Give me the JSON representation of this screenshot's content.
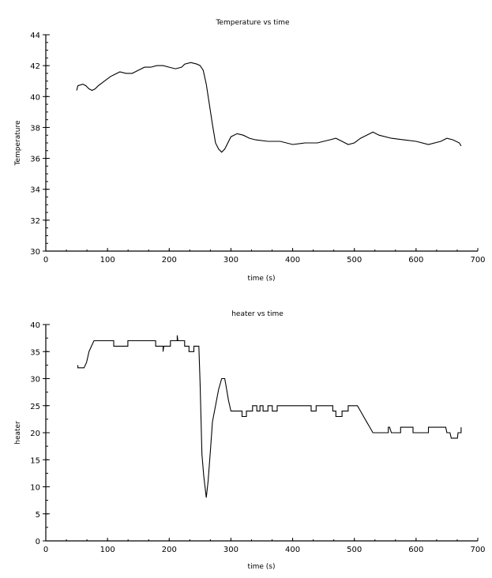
{
  "chart_data": [
    {
      "type": "line",
      "title": "Temperature vs time",
      "xlabel": "time (s)",
      "ylabel": "Temperature",
      "xlim": [
        0,
        700
      ],
      "ylim": [
        30,
        44
      ],
      "xticks": [
        0,
        100,
        200,
        300,
        400,
        500,
        600,
        700
      ],
      "yticks": [
        30,
        32,
        34,
        36,
        38,
        40,
        42,
        44
      ],
      "x_minor_step": 33.333,
      "y_minor_step": 0.5,
      "grid": false,
      "color": "#000000",
      "series": [
        {
          "name": "Temperature",
          "x": [
            50,
            52,
            60,
            65,
            70,
            75,
            80,
            85,
            95,
            105,
            110,
            120,
            130,
            140,
            150,
            160,
            170,
            180,
            190,
            200,
            210,
            220,
            225,
            235,
            245,
            250,
            255,
            260,
            265,
            270,
            275,
            280,
            285,
            290,
            295,
            300,
            310,
            320,
            330,
            340,
            360,
            380,
            400,
            420,
            440,
            460,
            470,
            480,
            490,
            500,
            510,
            520,
            530,
            540,
            560,
            580,
            600,
            620,
            640,
            650,
            660,
            670,
            673
          ],
          "y": [
            40.4,
            40.7,
            40.8,
            40.7,
            40.5,
            40.4,
            40.5,
            40.7,
            41.0,
            41.3,
            41.4,
            41.6,
            41.5,
            41.5,
            41.7,
            41.9,
            41.9,
            42.0,
            42.0,
            41.9,
            41.8,
            41.9,
            42.1,
            42.2,
            42.1,
            42.0,
            41.7,
            40.8,
            39.5,
            38.2,
            37.0,
            36.6,
            36.4,
            36.6,
            37.0,
            37.4,
            37.6,
            37.5,
            37.3,
            37.2,
            37.1,
            37.1,
            36.9,
            37.0,
            37.0,
            37.2,
            37.3,
            37.1,
            36.9,
            37.0,
            37.3,
            37.5,
            37.7,
            37.5,
            37.3,
            37.2,
            37.1,
            36.9,
            37.1,
            37.3,
            37.2,
            37.0,
            36.8
          ]
        }
      ]
    },
    {
      "type": "line",
      "title": "heater vs time",
      "xlabel": "time (s)",
      "ylabel": "heater",
      "xlim": [
        0,
        700
      ],
      "ylim": [
        0,
        40
      ],
      "xticks": [
        0,
        100,
        200,
        300,
        400,
        500,
        600,
        700
      ],
      "yticks": [
        0,
        5,
        10,
        15,
        20,
        25,
        30,
        35,
        40
      ],
      "x_minor_step": 33.333,
      "y_minor_step": 2.5,
      "grid": false,
      "color": "#000000",
      "series": [
        {
          "name": "heater",
          "x": [
            52,
            52,
            62,
            66,
            70,
            74,
            78,
            110,
            110,
            133,
            133,
            178,
            178,
            190,
            190,
            191,
            202,
            202,
            213,
            213,
            214,
            225,
            225,
            232,
            232,
            237,
            240,
            240,
            248,
            250,
            253,
            256,
            260,
            263,
            267,
            270,
            275,
            280,
            285,
            290,
            293,
            296,
            300,
            310,
            318,
            318,
            325,
            325,
            335,
            335,
            342,
            342,
            347,
            347,
            352,
            352,
            360,
            360,
            367,
            367,
            375,
            375,
            390,
            390,
            430,
            430,
            438,
            438,
            465,
            465,
            470,
            470,
            480,
            480,
            490,
            490,
            505,
            510,
            515,
            520,
            525,
            530,
            555,
            555,
            557,
            560,
            575,
            575,
            595,
            595,
            620,
            620,
            648,
            650,
            655,
            657,
            667,
            668,
            673,
            673
          ],
          "y": [
            32.5,
            32,
            32,
            33,
            35,
            36,
            37,
            37,
            36,
            36,
            37,
            37,
            36,
            36,
            35,
            36,
            36,
            37,
            37,
            38,
            37,
            37,
            36,
            36,
            35,
            35,
            35,
            36,
            36,
            29,
            16,
            12,
            8,
            11,
            17,
            22,
            25,
            28,
            30,
            30,
            28,
            26,
            24,
            24,
            24,
            23,
            23,
            24,
            24,
            25,
            25,
            24,
            24,
            25,
            25,
            24,
            24,
            25,
            25,
            24,
            24,
            25,
            25,
            25,
            25,
            24,
            24,
            25,
            25,
            24,
            24,
            23,
            23,
            24,
            24,
            25,
            25,
            24,
            23,
            22,
            21,
            20,
            20,
            21,
            21,
            20,
            20,
            21,
            21,
            20,
            20,
            21,
            21,
            20,
            20,
            19,
            19,
            20,
            20,
            21
          ]
        }
      ]
    }
  ]
}
